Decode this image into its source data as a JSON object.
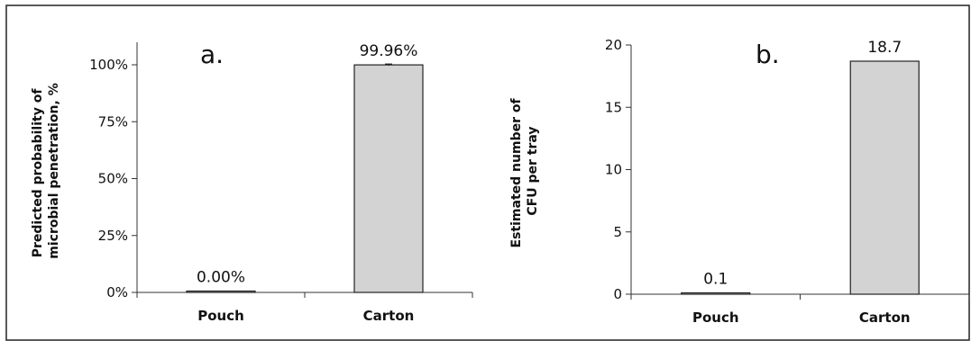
{
  "chart_data": [
    {
      "type": "bar",
      "panel_letter": "a.",
      "categories": [
        "Pouch",
        "Carton"
      ],
      "values": [
        0.0,
        99.96
      ],
      "value_labels": [
        "0.00%",
        "99.96%"
      ],
      "ylabel_lines": [
        "Predicted probability of",
        "microbial penetration, %"
      ],
      "ylim": [
        0,
        100
      ],
      "yticks": [
        0,
        25,
        50,
        75,
        100
      ],
      "ytick_labels": [
        "0%",
        "25%",
        "50%",
        "75%",
        "100%"
      ],
      "error_bars": true,
      "bar_color": "#d3d3d3",
      "grid": false
    },
    {
      "type": "bar",
      "panel_letter": "b.",
      "categories": [
        "Pouch",
        "Carton"
      ],
      "values": [
        0.1,
        18.7
      ],
      "value_labels": [
        "0.1",
        "18.7"
      ],
      "ylabel_lines": [
        "Estimated number of",
        "CFU per tray"
      ],
      "ylim": [
        0,
        20
      ],
      "yticks": [
        0,
        5,
        10,
        15,
        20
      ],
      "ytick_labels": [
        "0",
        "5",
        "10",
        "15",
        "20"
      ],
      "error_bars": false,
      "bar_color": "#d3d3d3",
      "grid": false
    }
  ]
}
